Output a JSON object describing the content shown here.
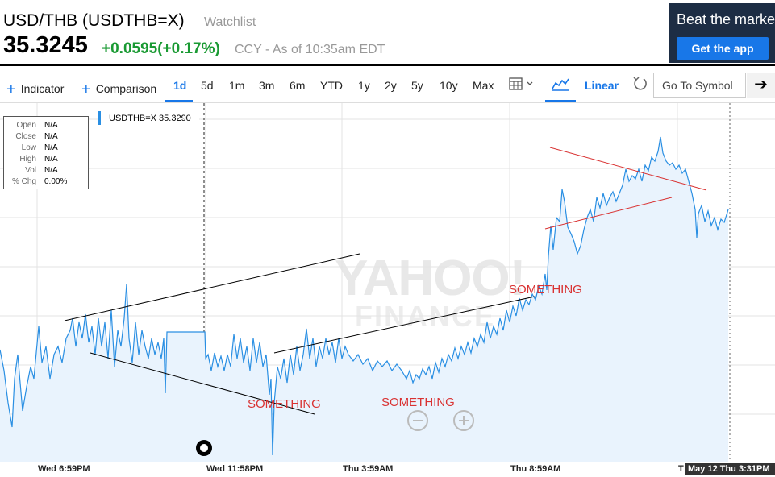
{
  "header": {
    "ticker_title": "USD/THB (USDTHB=X)",
    "watchlist_label": "Watchlist",
    "price": "35.3245",
    "change": "+0.0595(+0.17%)",
    "meta": "CCY - As of 10:35am EDT"
  },
  "promo": {
    "text": "Beat the marke",
    "button_label": "Get the app",
    "bg_color": "#1d2d44",
    "button_color": "#1877e8"
  },
  "toolbar": {
    "indicator_label": "Indicator",
    "comparison_label": "Comparison",
    "ranges": [
      "1d",
      "5d",
      "1m",
      "3m",
      "6m",
      "YTD",
      "1y",
      "2y",
      "5y",
      "10y",
      "Max"
    ],
    "active_range": "1d",
    "scale_label": "Linear",
    "goto_placeholder": "Go To Symbol",
    "icons": [
      "plus-icon",
      "calendar-icon",
      "chevron-down-icon",
      "area-chart-icon",
      "reset-icon",
      "arrow-right-icon"
    ]
  },
  "ohlc": {
    "rows": [
      {
        "k": "Open",
        "v": "N/A"
      },
      {
        "k": "Close",
        "v": "N/A"
      },
      {
        "k": "Low",
        "v": "N/A"
      },
      {
        "k": "High",
        "v": "N/A"
      },
      {
        "k": "Vol",
        "v": "N/A"
      },
      {
        "k": "% Chg",
        "v": "0.00%"
      }
    ]
  },
  "legend": {
    "text": "USDTHB=X 35.3290",
    "color": "#2a8fe3"
  },
  "watermark": {
    "line1": "YAHOO!",
    "line2": "FINANCE"
  },
  "annotations": [
    "SOMETHING",
    "SOMETHING",
    "SOMETHING"
  ],
  "crosshair_label": "May 12 Thu 3:31PM",
  "chart_data": {
    "type": "area",
    "series": [
      {
        "color": "#2a8fe3",
        "points": [
          [
            0,
            434
          ],
          [
            5,
            460
          ],
          [
            10,
            500
          ],
          [
            15,
            530
          ],
          [
            18,
            470
          ],
          [
            22,
            440
          ],
          [
            28,
            510
          ],
          [
            33,
            480
          ],
          [
            38,
            455
          ],
          [
            42,
            470
          ],
          [
            48,
            405
          ],
          [
            52,
            450
          ],
          [
            57,
            430
          ],
          [
            62,
            470
          ],
          [
            67,
            440
          ],
          [
            72,
            430
          ],
          [
            77,
            450
          ],
          [
            82,
            420
          ],
          [
            87,
            410
          ],
          [
            90,
            395
          ],
          [
            94,
            430
          ],
          [
            98,
            400
          ],
          [
            102,
            420
          ],
          [
            106,
            390
          ],
          [
            110,
            425
          ],
          [
            114,
            405
          ],
          [
            118,
            440
          ],
          [
            122,
            395
          ],
          [
            126,
            430
          ],
          [
            130,
            400
          ],
          [
            134,
            445
          ],
          [
            138,
            385
          ],
          [
            142,
            455
          ],
          [
            146,
            410
          ],
          [
            150,
            430
          ],
          [
            154,
            395
          ],
          [
            157,
            352
          ],
          [
            160,
            420
          ],
          [
            164,
            450
          ],
          [
            168,
            400
          ],
          [
            172,
            440
          ],
          [
            176,
            410
          ],
          [
            180,
            430
          ],
          [
            184,
            445
          ],
          [
            188,
            420
          ],
          [
            192,
            440
          ],
          [
            196,
            425
          ],
          [
            200,
            445
          ],
          [
            203,
            420
          ],
          [
            205,
            488
          ],
          [
            207,
            412
          ],
          [
            230,
            412
          ],
          [
            254,
            412
          ],
          [
            255,
            445
          ],
          [
            258,
            440
          ],
          [
            262,
            460
          ],
          [
            266,
            438
          ],
          [
            270,
            455
          ],
          [
            274,
            442
          ],
          [
            278,
            460
          ],
          [
            282,
            440
          ],
          [
            286,
            455
          ],
          [
            290,
            415
          ],
          [
            294,
            445
          ],
          [
            298,
            420
          ],
          [
            302,
            450
          ],
          [
            306,
            430
          ],
          [
            310,
            460
          ],
          [
            314,
            420
          ],
          [
            318,
            450
          ],
          [
            322,
            425
          ],
          [
            326,
            455
          ],
          [
            330,
            440
          ],
          [
            334,
            490
          ],
          [
            336,
            470
          ],
          [
            338,
            565
          ],
          [
            340,
            500
          ],
          [
            344,
            455
          ],
          [
            348,
            470
          ],
          [
            352,
            445
          ],
          [
            356,
            475
          ],
          [
            360,
            440
          ],
          [
            364,
            465
          ],
          [
            368,
            430
          ],
          [
            372,
            460
          ],
          [
            376,
            440
          ],
          [
            380,
            408
          ],
          [
            384,
            445
          ],
          [
            388,
            420
          ],
          [
            392,
            455
          ],
          [
            396,
            430
          ],
          [
            400,
            445
          ],
          [
            404,
            420
          ],
          [
            408,
            440
          ],
          [
            412,
            425
          ],
          [
            416,
            450
          ],
          [
            420,
            420
          ],
          [
            424,
            445
          ],
          [
            428,
            430
          ],
          [
            432,
            440
          ],
          [
            438,
            448
          ],
          [
            444,
            440
          ],
          [
            450,
            452
          ],
          [
            456,
            445
          ],
          [
            462,
            460
          ],
          [
            468,
            448
          ],
          [
            474,
            455
          ],
          [
            480,
            448
          ],
          [
            486,
            460
          ],
          [
            492,
            452
          ],
          [
            498,
            460
          ],
          [
            504,
            470
          ],
          [
            508,
            460
          ],
          [
            512,
            475
          ],
          [
            516,
            465
          ],
          [
            520,
            470
          ],
          [
            524,
            458
          ],
          [
            528,
            465
          ],
          [
            532,
            455
          ],
          [
            536,
            470
          ],
          [
            540,
            450
          ],
          [
            544,
            462
          ],
          [
            548,
            445
          ],
          [
            552,
            455
          ],
          [
            556,
            440
          ],
          [
            560,
            448
          ],
          [
            564,
            432
          ],
          [
            568,
            445
          ],
          [
            572,
            430
          ],
          [
            576,
            440
          ],
          [
            580,
            425
          ],
          [
            584,
            438
          ],
          [
            588,
            420
          ],
          [
            592,
            430
          ],
          [
            596,
            415
          ],
          [
            600,
            425
          ],
          [
            604,
            400
          ],
          [
            608,
            420
          ],
          [
            612,
            405
          ],
          [
            616,
            415
          ],
          [
            620,
            395
          ],
          [
            624,
            410
          ],
          [
            628,
            385
          ],
          [
            632,
            400
          ],
          [
            636,
            380
          ],
          [
            640,
            392
          ],
          [
            644,
            370
          ],
          [
            648,
            385
          ],
          [
            652,
            372
          ],
          [
            656,
            378
          ],
          [
            660,
            365
          ],
          [
            664,
            372
          ],
          [
            668,
            355
          ],
          [
            672,
            365
          ],
          [
            676,
            340
          ],
          [
            678,
            360
          ],
          [
            680,
            318
          ],
          [
            683,
            280
          ],
          [
            686,
            310
          ],
          [
            690,
            270
          ],
          [
            694,
            275
          ],
          [
            697,
            235
          ],
          [
            700,
            250
          ],
          [
            704,
            282
          ],
          [
            708,
            290
          ],
          [
            712,
            300
          ],
          [
            716,
            315
          ],
          [
            720,
            305
          ],
          [
            724,
            285
          ],
          [
            728,
            270
          ],
          [
            732,
            260
          ],
          [
            736,
            275
          ],
          [
            740,
            245
          ],
          [
            744,
            258
          ],
          [
            748,
            240
          ],
          [
            752,
            255
          ],
          [
            756,
            245
          ],
          [
            760,
            238
          ],
          [
            764,
            250
          ],
          [
            768,
            240
          ],
          [
            772,
            230
          ],
          [
            776,
            210
          ],
          [
            780,
            225
          ],
          [
            784,
            218
          ],
          [
            788,
            222
          ],
          [
            792,
            210
          ],
          [
            796,
            225
          ],
          [
            800,
            205
          ],
          [
            804,
            212
          ],
          [
            808,
            195
          ],
          [
            812,
            200
          ],
          [
            816,
            188
          ],
          [
            819,
            170
          ],
          [
            822,
            190
          ],
          [
            826,
            200
          ],
          [
            830,
            205
          ],
          [
            834,
            202
          ],
          [
            838,
            210
          ],
          [
            842,
            205
          ],
          [
            846,
            215
          ],
          [
            850,
            210
          ],
          [
            854,
            225
          ],
          [
            858,
            240
          ],
          [
            862,
            260
          ],
          [
            864,
            295
          ],
          [
            866,
            265
          ],
          [
            870,
            255
          ],
          [
            874,
            275
          ],
          [
            878,
            262
          ],
          [
            882,
            280
          ],
          [
            886,
            270
          ],
          [
            890,
            285
          ],
          [
            894,
            272
          ],
          [
            898,
            276
          ],
          [
            903,
            260
          ]
        ]
      }
    ],
    "x_tick_labels": [
      "Wed 6:59PM",
      "Wed 11:58PM",
      "Thu 3:59AM",
      "Thu 8:59AM",
      "T"
    ],
    "y_grid": [
      148,
      209,
      270,
      331,
      392,
      453,
      514
    ],
    "x_grid": [
      46,
      255,
      424,
      632,
      840
    ]
  }
}
